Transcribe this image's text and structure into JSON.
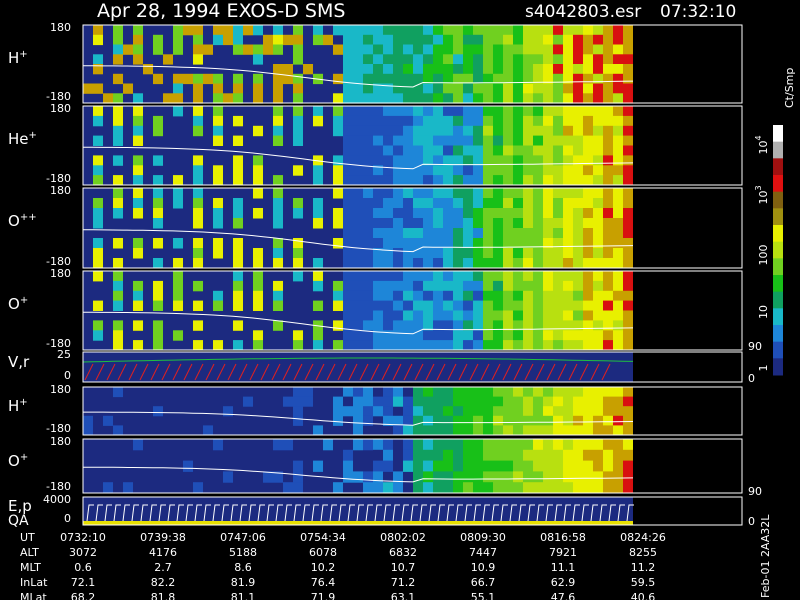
{
  "header": {
    "title": "Apr 28, 1994    EXOS-D SMS",
    "file": "s4042803.esr",
    "time": "07:32:10"
  },
  "panels": [
    {
      "label": "H",
      "sup": "+",
      "top": "180",
      "bottom": "-180"
    },
    {
      "label": "He",
      "sup": "+",
      "top": "180",
      "bottom": "-180"
    },
    {
      "label": "O",
      "sup": "++",
      "top": "180",
      "bottom": "-180"
    },
    {
      "label": "O",
      "sup": "+",
      "top": "180",
      "bottom": "-180"
    },
    {
      "label": "V,r",
      "top": "25",
      "bottom": "0",
      "right_top": "90",
      "right_bottom": "0"
    },
    {
      "label": "H",
      "sup": "+",
      "top": "180",
      "bottom": "-180"
    },
    {
      "label": "O",
      "sup": "+",
      "top": "180",
      "bottom": "-180"
    },
    {
      "label": "E,p",
      "label2": "QA",
      "top": "4000",
      "bottom": "0",
      "right_top": "90",
      "right_bottom": "0"
    }
  ],
  "colorbar": {
    "unit": "Ct/Smp",
    "ticks": [
      {
        "text": "10",
        "sup": "4"
      },
      {
        "text": "10",
        "sup": "3"
      },
      {
        "text": "100"
      },
      {
        "text": "10"
      },
      {
        "text": "1"
      }
    ]
  },
  "table": {
    "rows": [
      {
        "label": "UT",
        "values": [
          "0732:10",
          "0739:38",
          "0747:06",
          "0754:34",
          "0802:02",
          "0809:30",
          "0816:58",
          "0824:26"
        ]
      },
      {
        "label": "ALT",
        "values": [
          "3072",
          "4176",
          "5188",
          "6078",
          "6832",
          "7447",
          "7921",
          "8255"
        ]
      },
      {
        "label": "MLT",
        "values": [
          "0.6",
          "2.7",
          "8.6",
          "10.2",
          "10.7",
          "10.9",
          "11.1",
          "11.2"
        ]
      },
      {
        "label": "InLat",
        "values": [
          "72.1",
          "82.2",
          "81.9",
          "76.4",
          "71.2",
          "66.7",
          "62.9",
          "59.5"
        ]
      },
      {
        "label": "MLat",
        "values": [
          "68.2",
          "81.8",
          "81.1",
          "71.9",
          "63.1",
          "55.1",
          "47.6",
          "40.6"
        ]
      }
    ]
  },
  "footer": {
    "version": "Feb-01 2AA32L"
  }
}
